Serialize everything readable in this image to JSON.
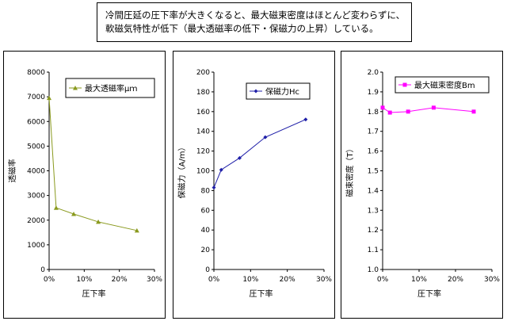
{
  "caption": {
    "line1": "冷間圧延の圧下率が大きくなると、最大磁束密度はほとんど変わらずに、",
    "line2": "軟磁気特性が低下（最大透磁率の低下・保磁力の上昇）している。"
  },
  "chart_data": [
    {
      "type": "line",
      "title": "",
      "xlabel": "圧下率",
      "ylabel": "透磁率",
      "xlim": [
        0,
        30
      ],
      "ylim": [
        0,
        8000
      ],
      "xticks": [
        "0%",
        "10%",
        "20%",
        "30%"
      ],
      "yticks": [
        "0",
        "1000",
        "2000",
        "3000",
        "4000",
        "5000",
        "6000",
        "7000",
        "8000"
      ],
      "legend_position": "top-right",
      "grid": false,
      "series": [
        {
          "name": "最大透磁率μｍ",
          "color": "#8a9a1e",
          "marker": "triangle",
          "x": [
            0,
            2,
            7,
            14,
            25
          ],
          "values": [
            6950,
            2500,
            2250,
            1930,
            1580
          ]
        }
      ]
    },
    {
      "type": "line",
      "title": "",
      "xlabel": "圧下率",
      "ylabel": "保磁力（A/m）",
      "xlim": [
        0,
        30
      ],
      "ylim": [
        0,
        200
      ],
      "xticks": [
        "0%",
        "10%",
        "20%",
        "30%"
      ],
      "yticks": [
        "0",
        "20",
        "40",
        "60",
        "80",
        "100",
        "120",
        "140",
        "160",
        "180",
        "200"
      ],
      "legend_position": "top-right",
      "grid": false,
      "series": [
        {
          "name": "保磁力Hc",
          "color": "#1f1fa8",
          "marker": "diamond",
          "x": [
            0,
            2,
            7,
            14,
            25
          ],
          "values": [
            83,
            101,
            113,
            134,
            152
          ]
        }
      ]
    },
    {
      "type": "line",
      "title": "",
      "xlabel": "圧下率",
      "ylabel": "磁束密度（T）",
      "xlim": [
        0,
        30
      ],
      "ylim": [
        1.0,
        2.0
      ],
      "xticks": [
        "0%",
        "10%",
        "20%",
        "30%"
      ],
      "yticks": [
        "1.0",
        "1.1",
        "1.2",
        "1.3",
        "1.4",
        "1.5",
        "1.6",
        "1.7",
        "1.8",
        "1.9",
        "2.0"
      ],
      "legend_position": "top-right",
      "grid": false,
      "series": [
        {
          "name": "最大磁束密度Bm",
          "color": "#ff00ff",
          "marker": "square",
          "x": [
            0,
            2,
            7,
            14,
            25
          ],
          "values": [
            1.82,
            1.795,
            1.8,
            1.82,
            1.8
          ]
        }
      ]
    }
  ]
}
